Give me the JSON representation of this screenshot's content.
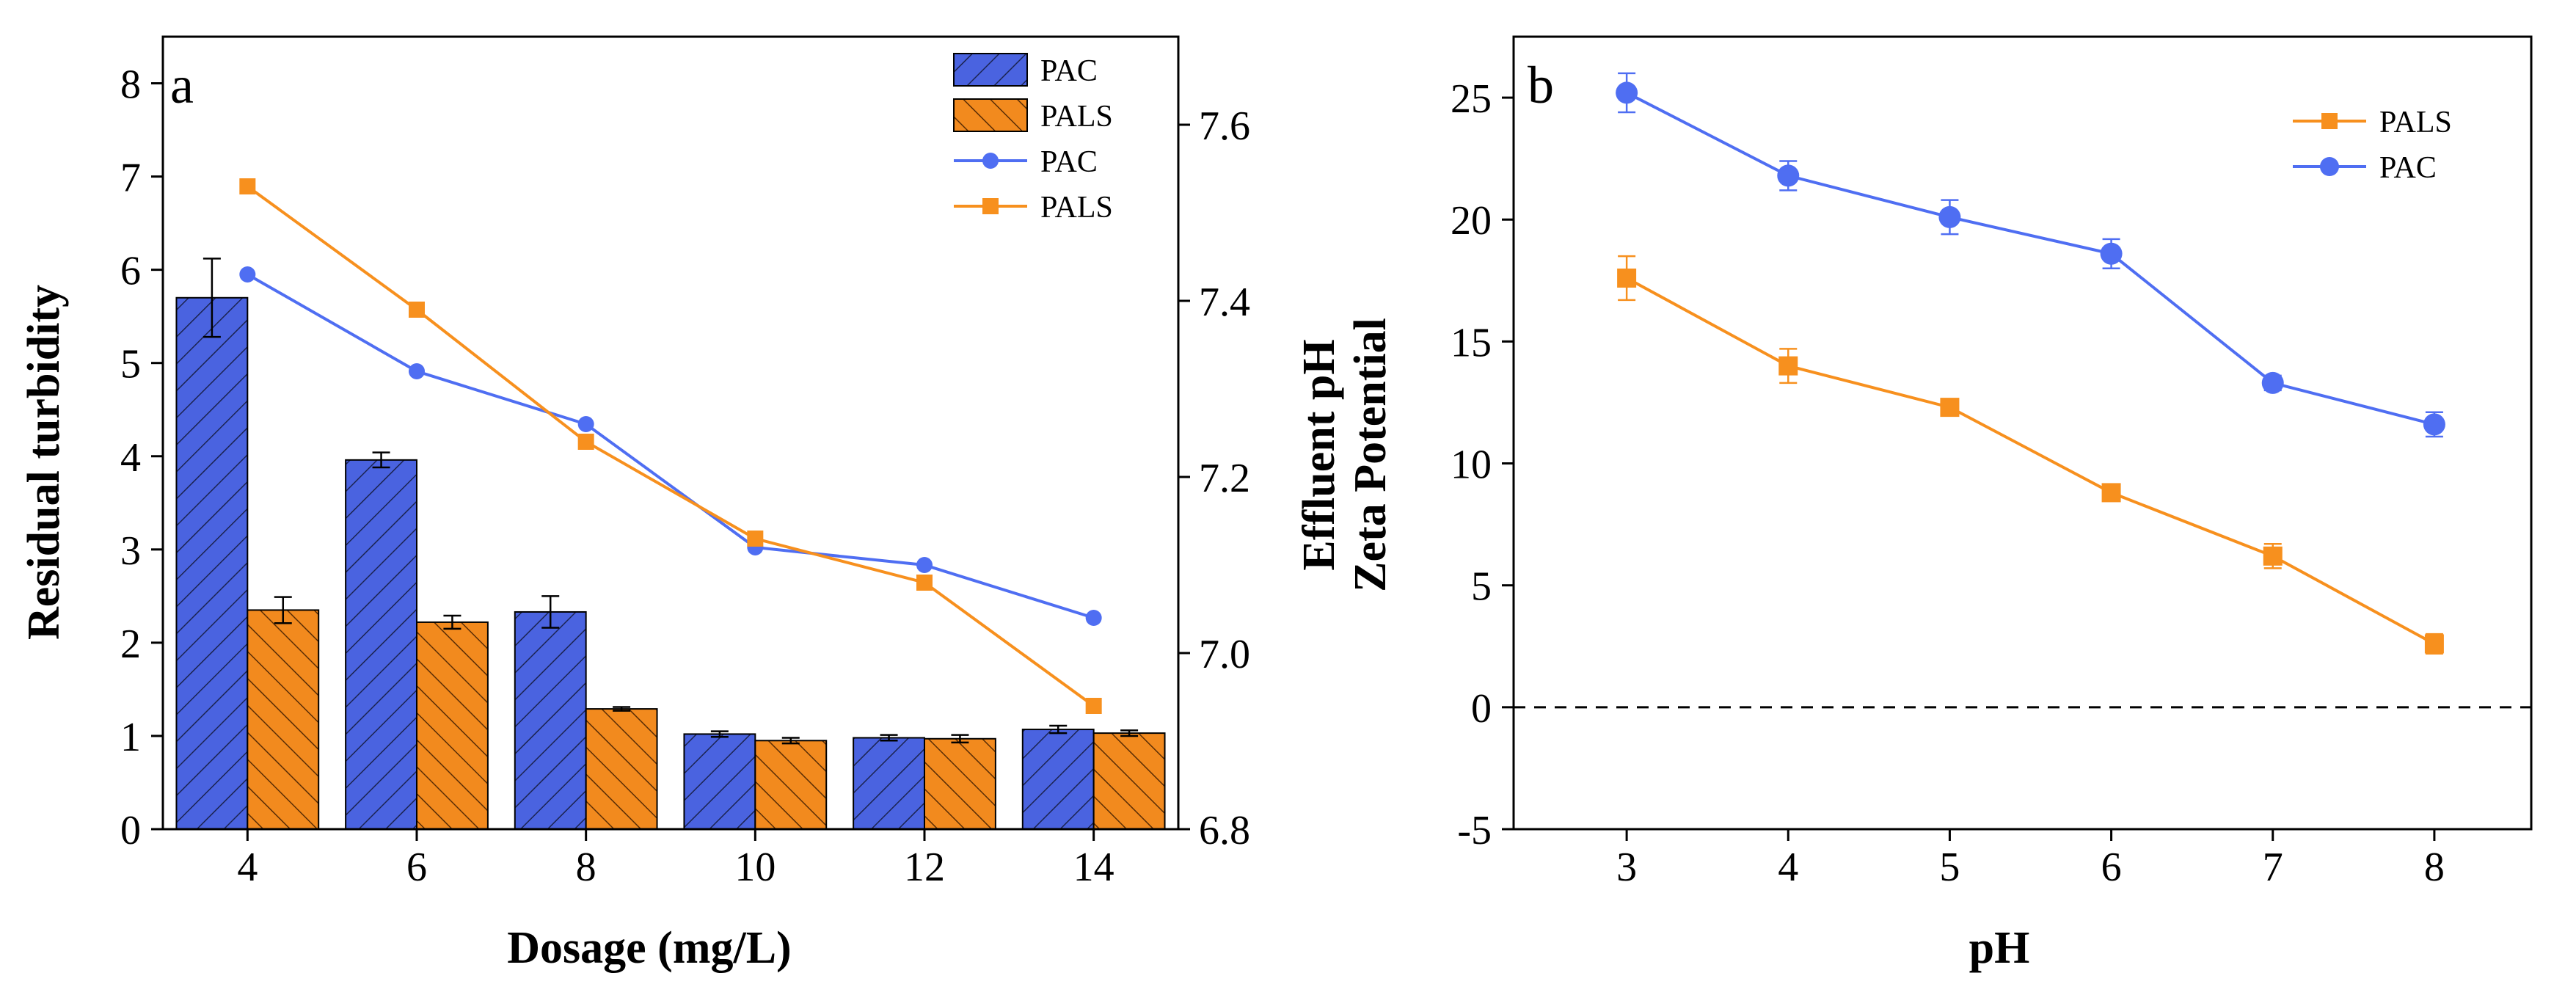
{
  "chart_data": [
    {
      "panel_label": "a",
      "type": "bar+line",
      "xlabel": "Dosage (mg/L)",
      "ylabel": "Residual turbidity",
      "y2label_line1": "Effluent pH",
      "y2label_line2": "Zeta Potential",
      "categories": [
        "4",
        "6",
        "8",
        "10",
        "12",
        "14"
      ],
      "ylim": [
        0,
        8.5
      ],
      "yticks": [
        0,
        1,
        2,
        3,
        4,
        5,
        6,
        7,
        8
      ],
      "y2lim": [
        6.8,
        7.7
      ],
      "y2ticks": [
        6.8,
        7.0,
        7.2,
        7.4,
        7.6
      ],
      "y2tick_labels": [
        "6.8",
        "7.0",
        "7.2",
        "7.4",
        "7.6"
      ],
      "bar_series": [
        {
          "name": "PAC",
          "color": "#4a63e0",
          "values": [
            5.7,
            3.96,
            2.33,
            1.02,
            0.98,
            1.07
          ],
          "errors": [
            0.42,
            0.08,
            0.17,
            0.03,
            0.03,
            0.04
          ]
        },
        {
          "name": "PALS",
          "color": "#f28a1e",
          "values": [
            2.35,
            2.22,
            1.29,
            0.95,
            0.97,
            1.03
          ],
          "errors": [
            0.14,
            0.07,
            0.02,
            0.03,
            0.04,
            0.03
          ]
        }
      ],
      "line_series": [
        {
          "name": "PAC",
          "color": "#4f6ef2",
          "marker": "circle",
          "values": [
            7.43,
            7.32,
            7.26,
            7.12,
            7.1,
            7.04
          ]
        },
        {
          "name": "PALS",
          "color": "#f7901e",
          "marker": "square",
          "values": [
            7.53,
            7.39,
            7.24,
            7.13,
            7.08,
            6.94
          ]
        }
      ],
      "legend": [
        "PAC",
        "PALS",
        "PAC",
        "PALS"
      ]
    },
    {
      "panel_label": "b",
      "type": "line",
      "xlabel": "pH",
      "x": [
        3,
        4,
        5,
        6,
        7,
        8
      ],
      "xlim": [
        2.3,
        8.6
      ],
      "ylim": [
        -5,
        27.5
      ],
      "yticks": [
        -5,
        0,
        5,
        10,
        15,
        20,
        25
      ],
      "reference_line": 0,
      "series": [
        {
          "name": "PALS",
          "color": "#f7901e",
          "marker": "square",
          "values": [
            17.6,
            14.0,
            12.3,
            8.8,
            6.2,
            2.6
          ],
          "errors": [
            0.9,
            0.7,
            0.3,
            0.3,
            0.5,
            0.4
          ]
        },
        {
          "name": "PAC",
          "color": "#4f6ef2",
          "marker": "circle",
          "values": [
            25.2,
            21.8,
            20.1,
            18.6,
            13.3,
            11.6
          ],
          "errors": [
            0.8,
            0.6,
            0.7,
            0.6,
            0.3,
            0.5
          ]
        }
      ],
      "legend": [
        "PALS",
        "PAC"
      ]
    }
  ]
}
